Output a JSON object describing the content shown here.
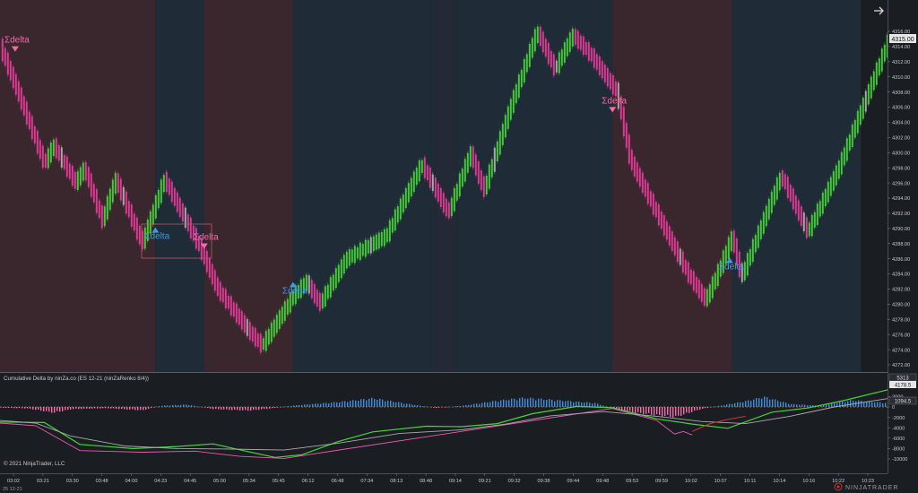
{
  "chart_data": [
    {
      "type": "line",
      "title": "",
      "ylim": [
        4270.5,
        4317.5
      ],
      "y_ticks": [
        "4316.00",
        "4314.00",
        "4312.00",
        "4310.00",
        "4308.00",
        "4306.00",
        "4304.00",
        "4302.00",
        "4300.00",
        "4298.00",
        "4296.00",
        "4294.00",
        "4292.00",
        "4290.00",
        "4288.00",
        "4286.00",
        "4284.00",
        "4282.00",
        "4280.00",
        "4278.00",
        "4276.00",
        "4274.00",
        "4272.00"
      ],
      "current_price": "4315.00",
      "price_path": [
        {
          "x": 0.0,
          "y": 4314.0
        },
        {
          "x": 0.02,
          "y": 4308.0
        },
        {
          "x": 0.05,
          "y": 4298.5
        },
        {
          "x": 0.06,
          "y": 4301.0
        },
        {
          "x": 0.085,
          "y": 4296.0
        },
        {
          "x": 0.095,
          "y": 4298.0
        },
        {
          "x": 0.115,
          "y": 4291.0
        },
        {
          "x": 0.13,
          "y": 4296.5
        },
        {
          "x": 0.16,
          "y": 4288.0
        },
        {
          "x": 0.185,
          "y": 4296.5
        },
        {
          "x": 0.225,
          "y": 4287.5
        },
        {
          "x": 0.245,
          "y": 4282.0
        },
        {
          "x": 0.28,
          "y": 4276.5
        },
        {
          "x": 0.295,
          "y": 4274.5
        },
        {
          "x": 0.33,
          "y": 4281.0
        },
        {
          "x": 0.345,
          "y": 4283.0
        },
        {
          "x": 0.36,
          "y": 4280.0
        },
        {
          "x": 0.39,
          "y": 4286.0
        },
        {
          "x": 0.435,
          "y": 4289.0
        },
        {
          "x": 0.475,
          "y": 4298.5
        },
        {
          "x": 0.505,
          "y": 4292.0
        },
        {
          "x": 0.53,
          "y": 4300.0
        },
        {
          "x": 0.545,
          "y": 4295.0
        },
        {
          "x": 0.575,
          "y": 4306.0
        },
        {
          "x": 0.605,
          "y": 4316.0
        },
        {
          "x": 0.625,
          "y": 4311.0
        },
        {
          "x": 0.645,
          "y": 4315.5
        },
        {
          "x": 0.665,
          "y": 4313.0
        },
        {
          "x": 0.695,
          "y": 4308.0
        },
        {
          "x": 0.71,
          "y": 4299.0
        },
        {
          "x": 0.74,
          "y": 4292.0
        },
        {
          "x": 0.775,
          "y": 4284.0
        },
        {
          "x": 0.795,
          "y": 4280.5
        },
        {
          "x": 0.81,
          "y": 4284.5
        },
        {
          "x": 0.825,
          "y": 4289.0
        },
        {
          "x": 0.835,
          "y": 4283.5
        },
        {
          "x": 0.88,
          "y": 4297.0
        },
        {
          "x": 0.91,
          "y": 4289.5
        },
        {
          "x": 0.945,
          "y": 4298.0
        },
        {
          "x": 1.0,
          "y": 4314.5
        }
      ],
      "session_bands": [
        {
          "from": 0.0,
          "to": 0.175,
          "color": "#3a272e"
        },
        {
          "from": 0.175,
          "to": 0.23,
          "color": "#1f2b36"
        },
        {
          "from": 0.23,
          "to": 0.33,
          "color": "#3a272e"
        },
        {
          "from": 0.33,
          "to": 0.49,
          "color": "#1f2b36"
        },
        {
          "from": 0.49,
          "to": 0.515,
          "color": "#232a35"
        },
        {
          "from": 0.515,
          "to": 0.69,
          "color": "#1f2b36"
        },
        {
          "from": 0.69,
          "to": 0.825,
          "color": "#3a272e"
        },
        {
          "from": 0.825,
          "to": 0.97,
          "color": "#1f2b36"
        }
      ],
      "annotations": [
        {
          "text": "Σdelta",
          "marker": "down",
          "color": "#f26ea6",
          "at": {
            "x": 0.005,
            "y": 4314.5
          }
        },
        {
          "text": "Σdelta",
          "marker": "up",
          "color": "#3b9be6",
          "at": {
            "x": 0.163,
            "y": 4288.6
          }
        },
        {
          "text": "Σdelta",
          "marker": "down",
          "color": "#f26ea6",
          "at": {
            "x": 0.218,
            "y": 4288.5
          }
        },
        {
          "text": "Σdelta",
          "marker": "up",
          "color": "#3b9be6",
          "at": {
            "x": 0.318,
            "y": 4281.4
          }
        },
        {
          "text": "Σdelta",
          "marker": "down",
          "color": "#f26ea6",
          "at": {
            "x": 0.678,
            "y": 4306.5
          }
        },
        {
          "text": "Σdelta",
          "marker": "up",
          "color": "#3b9be6",
          "at": {
            "x": 0.81,
            "y": 4284.6
          }
        }
      ]
    },
    {
      "type": "bar",
      "title": "Cumulative Delta by ninZa.co (ES 12-21 (ninZaRenko 8/4))",
      "y_ticks": [
        "2000",
        "0",
        "-2000",
        "-4000",
        "-6000",
        "-8000",
        "-10000"
      ],
      "last_values": [
        "5313",
        "4178.5",
        "1094.5"
      ],
      "histogram": [
        {
          "x": 0.0,
          "y": -150
        },
        {
          "x": 0.03,
          "y": -300
        },
        {
          "x": 0.06,
          "y": -1200
        },
        {
          "x": 0.08,
          "y": -450
        },
        {
          "x": 0.12,
          "y": -250
        },
        {
          "x": 0.16,
          "y": -700
        },
        {
          "x": 0.18,
          "y": 250
        },
        {
          "x": 0.21,
          "y": 500
        },
        {
          "x": 0.24,
          "y": -450
        },
        {
          "x": 0.28,
          "y": -750
        },
        {
          "x": 0.3,
          "y": -400
        },
        {
          "x": 0.33,
          "y": 300
        },
        {
          "x": 0.38,
          "y": 1000
        },
        {
          "x": 0.42,
          "y": 1800
        },
        {
          "x": 0.46,
          "y": 600
        },
        {
          "x": 0.49,
          "y": -200
        },
        {
          "x": 0.52,
          "y": 250
        },
        {
          "x": 0.56,
          "y": 1300
        },
        {
          "x": 0.59,
          "y": 1900
        },
        {
          "x": 0.62,
          "y": 1500
        },
        {
          "x": 0.67,
          "y": 800
        },
        {
          "x": 0.69,
          "y": -350
        },
        {
          "x": 0.72,
          "y": -1300
        },
        {
          "x": 0.76,
          "y": -2100
        },
        {
          "x": 0.79,
          "y": -400
        },
        {
          "x": 0.84,
          "y": 1200
        },
        {
          "x": 0.86,
          "y": 2100
        },
        {
          "x": 0.89,
          "y": 600
        },
        {
          "x": 0.92,
          "y": 300
        },
        {
          "x": 0.96,
          "y": 1400
        },
        {
          "x": 1.0,
          "y": 800
        }
      ],
      "series": [
        {
          "name": "",
          "color": "#47d43a",
          "points": [
            {
              "x": 0.0,
              "y": -2900
            },
            {
              "x": 0.05,
              "y": -3000
            },
            {
              "x": 0.09,
              "y": -7200
            },
            {
              "x": 0.15,
              "y": -8000
            },
            {
              "x": 0.2,
              "y": -7600
            },
            {
              "x": 0.24,
              "y": -7100
            },
            {
              "x": 0.28,
              "y": -8600
            },
            {
              "x": 0.31,
              "y": -9700
            },
            {
              "x": 0.34,
              "y": -9200
            },
            {
              "x": 0.38,
              "y": -6700
            },
            {
              "x": 0.42,
              "y": -4800
            },
            {
              "x": 0.48,
              "y": -3700
            },
            {
              "x": 0.52,
              "y": -3800
            },
            {
              "x": 0.56,
              "y": -3200
            },
            {
              "x": 0.6,
              "y": -1300
            },
            {
              "x": 0.65,
              "y": 100
            },
            {
              "x": 0.69,
              "y": -150
            },
            {
              "x": 0.74,
              "y": -2300
            },
            {
              "x": 0.78,
              "y": -3300
            },
            {
              "x": 0.82,
              "y": -4100
            },
            {
              "x": 0.87,
              "y": -1000
            },
            {
              "x": 0.91,
              "y": -200
            },
            {
              "x": 0.95,
              "y": 1200
            },
            {
              "x": 1.0,
              "y": 3300
            }
          ]
        },
        {
          "name": "",
          "color": "#e85bb0",
          "points": [
            {
              "x": 0.0,
              "y": -3100
            },
            {
              "x": 0.04,
              "y": -3600
            },
            {
              "x": 0.09,
              "y": -8400
            },
            {
              "x": 0.16,
              "y": -8700
            },
            {
              "x": 0.22,
              "y": -8500
            },
            {
              "x": 0.27,
              "y": -9500
            },
            {
              "x": 0.32,
              "y": -9900
            },
            {
              "x": 0.69,
              "y": -300
            },
            {
              "x": 0.74,
              "y": -2600
            },
            {
              "x": 0.76,
              "y": -5200
            },
            {
              "x": 0.77,
              "y": -4700
            },
            {
              "x": 0.78,
              "y": -5400
            }
          ]
        },
        {
          "name": "",
          "color": "#aaaaaa",
          "points": [
            {
              "x": 0.0,
              "y": -2600
            },
            {
              "x": 0.04,
              "y": -3100
            },
            {
              "x": 0.08,
              "y": -5600
            },
            {
              "x": 0.14,
              "y": -7500
            },
            {
              "x": 0.2,
              "y": -8000
            },
            {
              "x": 0.26,
              "y": -8100
            },
            {
              "x": 0.32,
              "y": -8300
            },
            {
              "x": 0.38,
              "y": -7000
            },
            {
              "x": 0.45,
              "y": -5100
            },
            {
              "x": 0.52,
              "y": -4400
            },
            {
              "x": 0.57,
              "y": -3300
            },
            {
              "x": 0.62,
              "y": -1700
            },
            {
              "x": 0.68,
              "y": -900
            },
            {
              "x": 0.74,
              "y": -1800
            },
            {
              "x": 0.79,
              "y": -2800
            },
            {
              "x": 0.84,
              "y": -3200
            },
            {
              "x": 0.89,
              "y": -1800
            },
            {
              "x": 0.94,
              "y": 0
            },
            {
              "x": 1.0,
              "y": 1600
            }
          ]
        },
        {
          "name": "",
          "color": "#e03a3a",
          "points": [
            {
              "x": 0.78,
              "y": -4700
            },
            {
              "x": 0.8,
              "y": -3200
            },
            {
              "x": 0.82,
              "y": -2400
            },
            {
              "x": 0.84,
              "y": -1800
            }
          ]
        }
      ]
    }
  ],
  "time_axis": [
    "03:02",
    "03:21",
    "03:30",
    "03:48",
    "04:00",
    "04:23",
    "04:45",
    "05:00",
    "05:34",
    "05:45",
    "06:12",
    "06:48",
    "07:34",
    "08:13",
    "08:48",
    "09:14",
    "09:21",
    "09:32",
    "09:38",
    "09:44",
    "09:48",
    "09:53",
    "09:59",
    "10:02",
    "10:07",
    "10:11",
    "10:14",
    "10:16",
    "10:22",
    "10:23"
  ],
  "footer": {
    "copyright": "© 2021 NinjaTrader, LLC",
    "date": "25 12-21",
    "brand": "NINJATRADER"
  },
  "colors": {
    "background": "#1a1e23",
    "up": "#47d43a",
    "down": "#e83a9a",
    "neutral": "#b0b0b0",
    "hist_pos": "#3b8ee0",
    "hist_neg": "#ef6fb0",
    "axis_text": "#c8c8c8"
  },
  "icons": {
    "top_right": "arrow-right-icon",
    "brand_logo": "ninjatrader-logo-icon"
  }
}
